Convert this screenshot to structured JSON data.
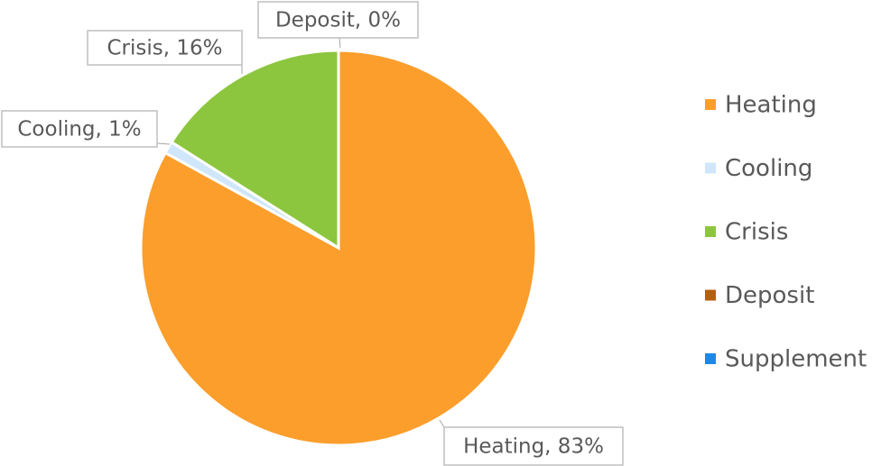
{
  "chart_data": {
    "type": "pie",
    "categories": [
      "Heating",
      "Cooling",
      "Crisis",
      "Deposit",
      "Supplement"
    ],
    "values": [
      83,
      1,
      16,
      0,
      0
    ],
    "value_labels": [
      "Heating, 83%",
      "Cooling, 1%",
      "Crisis, 16%",
      "Deposit, 0%",
      null
    ],
    "colors": [
      "#fb9e2c",
      "#cfe6fb",
      "#8cc63f",
      "#b3600f",
      "#1e88e5"
    ],
    "legend": "right"
  }
}
